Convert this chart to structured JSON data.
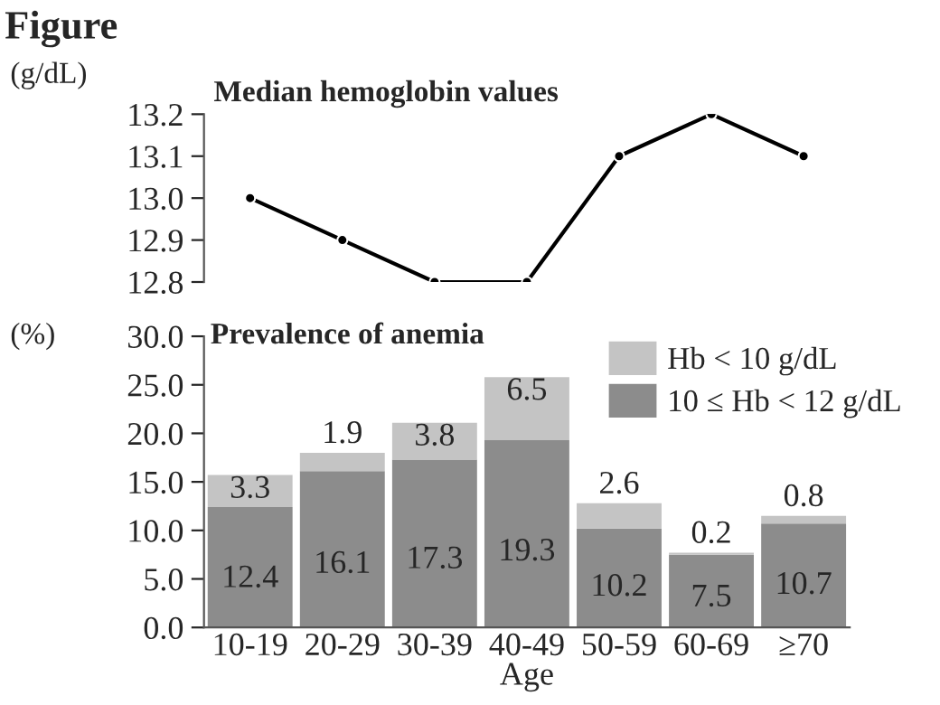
{
  "chart_data": [
    {
      "type": "line",
      "title": "Median hemoglobin values",
      "ylabel": "(g/dL)",
      "annotations": [
        "Figure"
      ],
      "categories": [
        null,
        null,
        null,
        null,
        null,
        null,
        null
      ],
      "series": [
        {
          "color": "#000000",
          "values": [
            13.0,
            12.9,
            12.8,
            12.8,
            13.1,
            13.2,
            13.1
          ]
        }
      ],
      "ylim": [
        12.8,
        13.2
      ],
      "yticks": [
        {
          "value": 12.8,
          "label": "12.8"
        },
        {
          "value": 12.9,
          "label": "12.9"
        },
        {
          "value": 13.0,
          "label": "13.0"
        },
        {
          "value": 13.1,
          "label": "13.1"
        },
        {
          "value": 13.2,
          "label": "13.2"
        }
      ],
      "tick_labels": "y",
      "marker": "circle",
      "line_style": "solid",
      "grid": false
    },
    {
      "type": "bar",
      "stacked": true,
      "title": "Prevalence of anemia",
      "ylabel": "(%)",
      "xlabel": "Age",
      "categories": [
        "10-19",
        "20-29",
        "30-39",
        "40-49",
        "50-59",
        "60-69",
        "≥70"
      ],
      "series": [
        {
          "name": "10 ≤ Hb < 12 g/dL",
          "color": "#8c8c8c",
          "values": [
            12.4,
            16.1,
            17.3,
            19.3,
            10.2,
            7.5,
            10.7
          ]
        },
        {
          "name": "Hb < 10 g/dL",
          "color": "#c4c4c4",
          "values": [
            3.3,
            1.9,
            3.8,
            6.5,
            2.6,
            0.2,
            0.8
          ]
        }
      ],
      "ylim": [
        0,
        30
      ],
      "yticks": [
        {
          "value": 0,
          "label": "0.0"
        },
        {
          "value": 5,
          "label": "5.0"
        },
        {
          "value": 10,
          "label": "10.0"
        },
        {
          "value": 15,
          "label": "15.0"
        },
        {
          "value": 20,
          "label": "20.0"
        },
        {
          "value": 25,
          "label": "25.0"
        },
        {
          "value": 30,
          "label": "30.0"
        }
      ],
      "data_labels": true,
      "grid": false,
      "legend": "top right"
    }
  ]
}
